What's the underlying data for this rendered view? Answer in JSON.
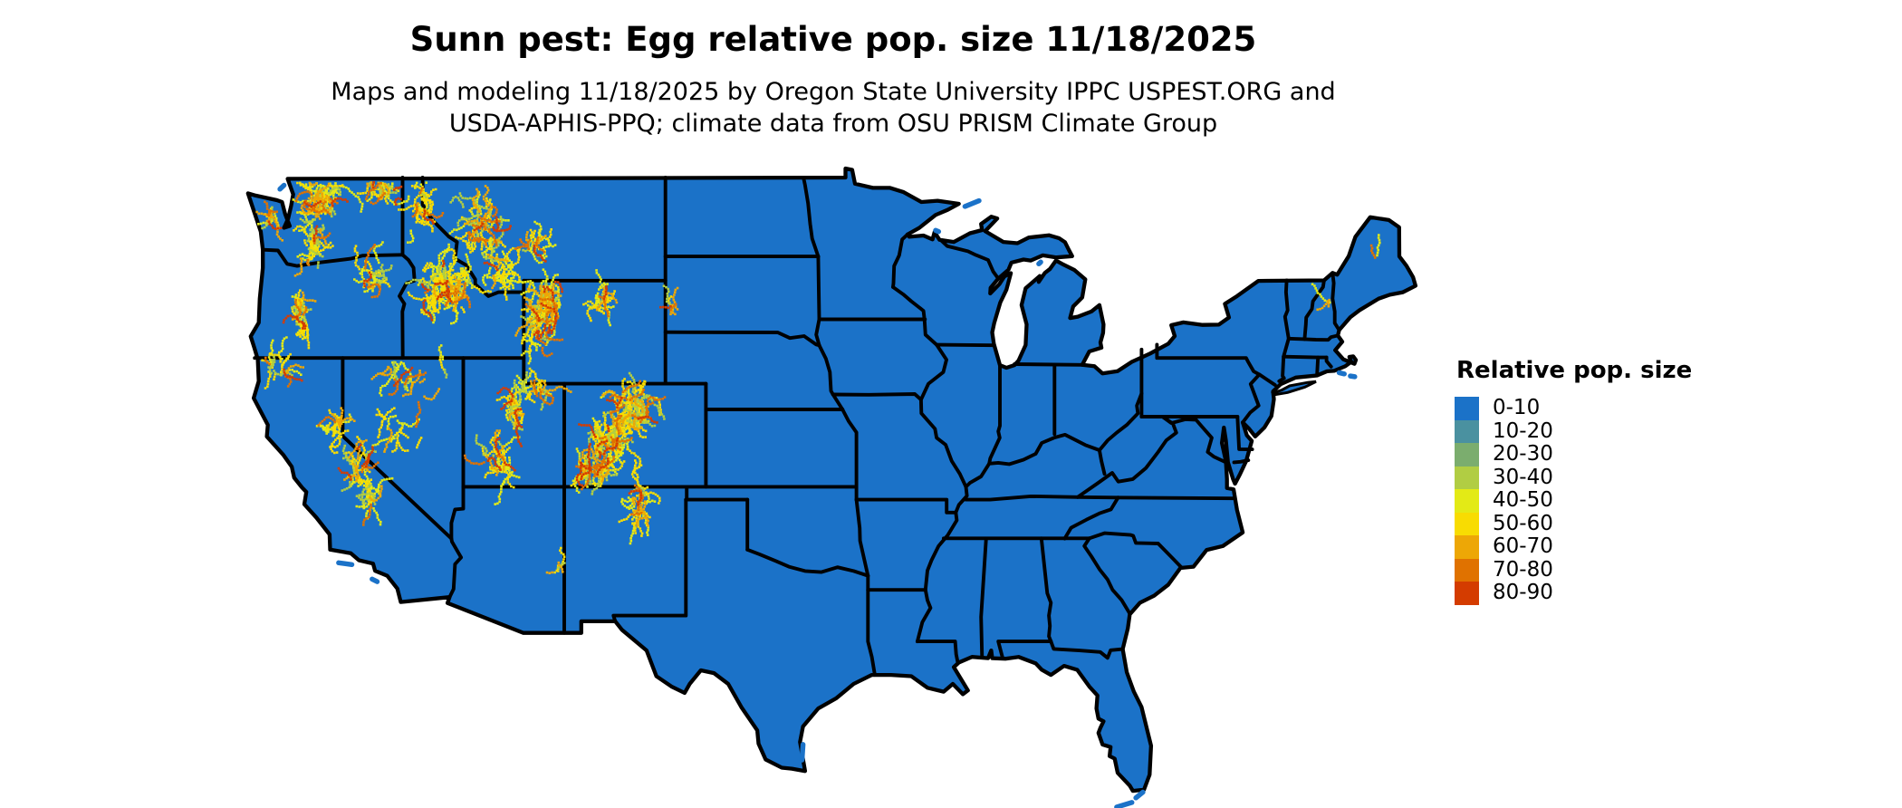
{
  "title": "Sunn pest: Egg relative pop. size 11/18/2025",
  "subtitle": {
    "line1": "Maps and modeling 11/18/2025 by Oregon State University IPPC USPEST.ORG and",
    "line2": "USDA-APHIS-PPQ; climate data from OSU PRISM Climate Group"
  },
  "legend": {
    "title": "Relative pop. size",
    "bins": [
      {
        "label": "0-10",
        "color": "#1b72c8"
      },
      {
        "label": "10-20",
        "color": "#4a91a0"
      },
      {
        "label": "20-30",
        "color": "#7bad6e"
      },
      {
        "label": "30-40",
        "color": "#b1cd43"
      },
      {
        "label": "40-50",
        "color": "#e3ea16"
      },
      {
        "label": "50-60",
        "color": "#f8dc02"
      },
      {
        "label": "60-70",
        "color": "#eda706"
      },
      {
        "label": "70-80",
        "color": "#e07200"
      },
      {
        "label": "80-90",
        "color": "#d43c00"
      }
    ]
  },
  "map": {
    "border_color": "#000000",
    "water_color": "#ffffff",
    "land_bin_label": "0-10",
    "speckle_palette": [
      {
        "color": "#e3ea16",
        "weight": 0.3
      },
      {
        "color": "#f8dc02",
        "weight": 0.28
      },
      {
        "color": "#b1cd43",
        "weight": 0.11
      },
      {
        "color": "#eda706",
        "weight": 0.14
      },
      {
        "color": "#e07200",
        "weight": 0.1
      },
      {
        "color": "#d43c00",
        "weight": 0.07
      }
    ],
    "hotspots": [
      {
        "name": "north-cascades",
        "lon": -121.15,
        "lat": 48.2,
        "sx": 0.55,
        "sy": 0.5,
        "n": 50
      },
      {
        "name": "ne-washington",
        "lon": -118.2,
        "lat": 48.55,
        "sx": 0.85,
        "sy": 0.45,
        "n": 30
      },
      {
        "name": "olympics",
        "lon": -123.6,
        "lat": 47.55,
        "sx": 0.28,
        "sy": 0.22,
        "n": 14
      },
      {
        "name": "south-cascades",
        "lon": -121.55,
        "lat": 46.6,
        "sx": 0.33,
        "sy": 0.7,
        "n": 26
      },
      {
        "name": "blue-mountains",
        "lon": -118.4,
        "lat": 45.1,
        "sx": 0.75,
        "sy": 0.55,
        "n": 26
      },
      {
        "name": "oregon-cascades",
        "lon": -122.05,
        "lat": 44.0,
        "sx": 0.28,
        "sy": 1.0,
        "n": 30
      },
      {
        "name": "klamath",
        "lon": -123.1,
        "lat": 41.6,
        "sx": 0.55,
        "sy": 0.5,
        "n": 16
      },
      {
        "name": "central-idaho",
        "lon": -114.9,
        "lat": 44.8,
        "sx": 1.05,
        "sy": 0.8,
        "n": 95
      },
      {
        "name": "north-idaho",
        "lon": -116.2,
        "lat": 47.9,
        "sx": 0.5,
        "sy": 0.75,
        "n": 28
      },
      {
        "name": "west-montana",
        "lon": -113.2,
        "lat": 47.1,
        "sx": 0.95,
        "sy": 0.85,
        "n": 55
      },
      {
        "name": "central-montana",
        "lon": -110.6,
        "lat": 46.6,
        "sx": 0.7,
        "sy": 0.5,
        "n": 20
      },
      {
        "name": "sw-montana",
        "lon": -112.1,
        "lat": 45.4,
        "sx": 0.7,
        "sy": 0.4,
        "n": 24
      },
      {
        "name": "yellowstone-absaroka",
        "lon": -110.1,
        "lat": 44.0,
        "sx": 0.8,
        "sy": 0.75,
        "n": 75
      },
      {
        "name": "bighorns",
        "lon": -107.25,
        "lat": 44.2,
        "sx": 0.28,
        "sy": 0.6,
        "n": 20
      },
      {
        "name": "wyoming-range",
        "lon": -110.6,
        "lat": 42.7,
        "sx": 0.35,
        "sy": 0.55,
        "n": 16
      },
      {
        "name": "uinta",
        "lon": -110.6,
        "lat": 40.75,
        "sx": 0.6,
        "sy": 0.22,
        "n": 20
      },
      {
        "name": "wasatch",
        "lon": -111.5,
        "lat": 40.1,
        "sx": 0.3,
        "sy": 0.9,
        "n": 34
      },
      {
        "name": "sw-utah",
        "lon": -112.4,
        "lat": 38.0,
        "sx": 0.55,
        "sy": 0.65,
        "n": 30
      },
      {
        "name": "colorado-front-range",
        "lon": -105.8,
        "lat": 40.0,
        "sx": 0.85,
        "sy": 0.65,
        "n": 85
      },
      {
        "name": "sawatch-elk",
        "lon": -106.8,
        "lat": 38.9,
        "sx": 0.7,
        "sy": 0.5,
        "n": 60
      },
      {
        "name": "san-juan",
        "lon": -107.5,
        "lat": 37.7,
        "sx": 0.7,
        "sy": 0.45,
        "n": 50
      },
      {
        "name": "sangre-de-cristo",
        "lon": -105.4,
        "lat": 36.5,
        "sx": 0.35,
        "sy": 0.8,
        "n": 30
      },
      {
        "name": "sierra-north",
        "lon": -120.35,
        "lat": 39.4,
        "sx": 0.4,
        "sy": 0.5,
        "n": 20
      },
      {
        "name": "sierra-central",
        "lon": -119.4,
        "lat": 37.8,
        "sx": 0.45,
        "sy": 0.55,
        "n": 28
      },
      {
        "name": "sierra-south",
        "lon": -118.6,
        "lat": 36.7,
        "sx": 0.35,
        "sy": 0.45,
        "n": 18
      },
      {
        "name": "north-nevada",
        "lon": -116.6,
        "lat": 41.3,
        "sx": 1.3,
        "sy": 0.55,
        "n": 20
      },
      {
        "name": "central-nevada",
        "lon": -117.2,
        "lat": 39.2,
        "sx": 0.9,
        "sy": 0.9,
        "n": 14
      },
      {
        "name": "white-mountains-az",
        "lon": -109.6,
        "lat": 33.9,
        "sx": 0.3,
        "sy": 0.2,
        "n": 6
      },
      {
        "name": "black-hills",
        "lon": -103.75,
        "lat": 44.1,
        "sx": 0.25,
        "sy": 0.3,
        "n": 8
      },
      {
        "name": "nh-white-mountains",
        "lon": -71.3,
        "lat": 44.25,
        "sx": 0.1,
        "sy": 0.08,
        "n": 3
      },
      {
        "name": "maine-highlands",
        "lon": -69.0,
        "lat": 46.0,
        "sx": 0.08,
        "sy": 0.06,
        "n": 2
      }
    ]
  }
}
